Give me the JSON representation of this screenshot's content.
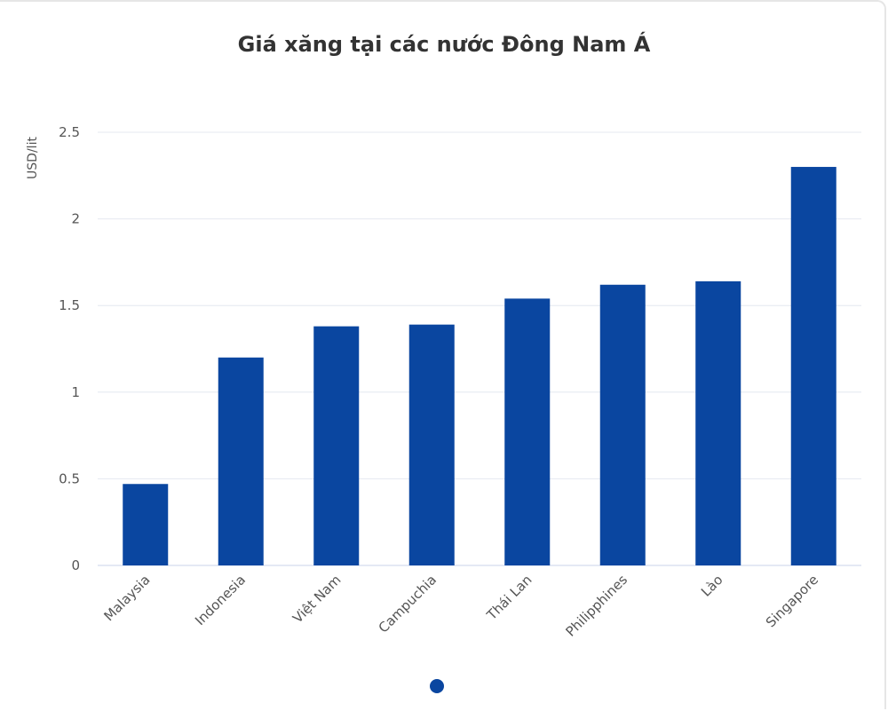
{
  "page": {
    "title": "Giá xăng tại các nước Đông Nam Á"
  },
  "colors": {
    "bar": "#0a46a0",
    "grid": "#e4e8f0",
    "axis": "#c9d3e8",
    "dot": "#0a46a0"
  },
  "chart_data": {
    "type": "bar",
    "title": "Giá xăng tại các nước Đông Nam Á",
    "xlabel": "",
    "ylabel": "USD/lit",
    "categories": [
      "Malaysia",
      "Indonesia",
      "Việt Nam",
      "Campuchia",
      "Thái Lan",
      "Philipphines",
      "Lào",
      "Singapore"
    ],
    "values": [
      0.47,
      1.2,
      1.38,
      1.39,
      1.54,
      1.62,
      1.64,
      2.3
    ],
    "ylim": [
      0,
      2.5
    ],
    "yticks": [
      "0",
      "0.5",
      "1",
      "1.5",
      "2",
      "2.5"
    ],
    "grid": true,
    "legend": "none"
  }
}
